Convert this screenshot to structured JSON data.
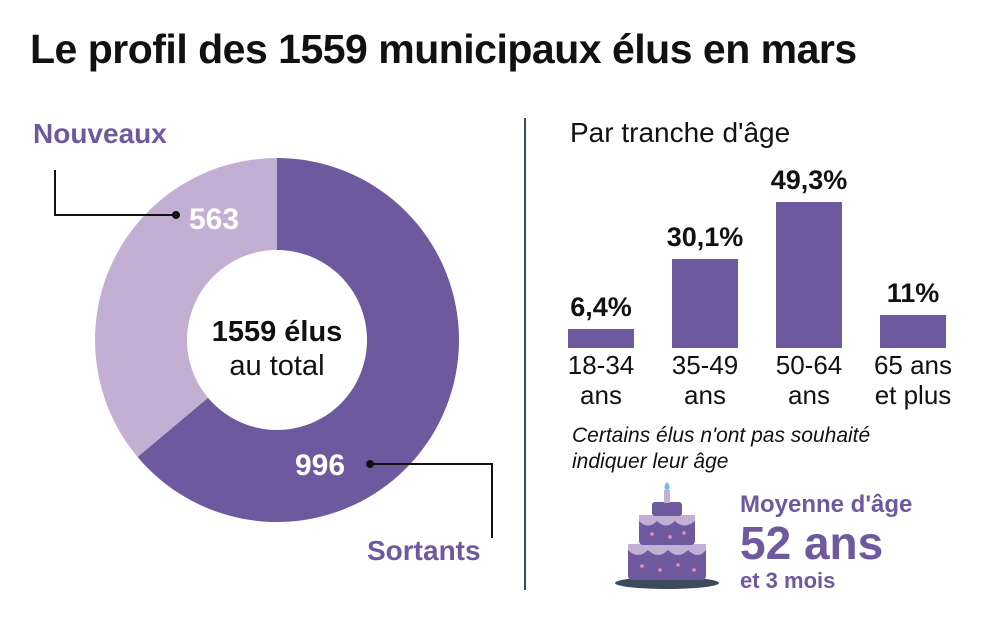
{
  "title": "Le profil des 1559 municipaux élus en mars",
  "colors": {
    "primary": "#6f599e",
    "light": "#c3afd3",
    "text": "#111111"
  },
  "donut": {
    "label_nouveaux": "Nouveaux",
    "label_sortants": "Sortants",
    "center_line1": "1559 élus",
    "center_line2": "au total"
  },
  "age": {
    "title": "Par tranche d'âge",
    "note_line1": "Certains élus n'ont pas souhaité",
    "note_line2": "indiquer leur âge"
  },
  "average": {
    "label": "Moyenne d'âge",
    "value": "52 ans",
    "sub": "et 3 mois"
  },
  "chart_data": [
    {
      "type": "pie",
      "title": "1559 élus au total",
      "categories": [
        "Nouveaux",
        "Sortants"
      ],
      "values": [
        563,
        996
      ],
      "value_labels": [
        "563",
        "996"
      ]
    },
    {
      "type": "bar",
      "title": "Par tranche d'âge",
      "categories": [
        "18-34\nans",
        "35-49\nans",
        "50-64\nans",
        "65 ans\net plus"
      ],
      "values": [
        6.4,
        30.1,
        49.3,
        11
      ],
      "value_labels": [
        "6,4%",
        "30,1%",
        "49,3%",
        "11%"
      ],
      "ylim": [
        0,
        49.3
      ],
      "xlabel": "",
      "ylabel": ""
    }
  ]
}
